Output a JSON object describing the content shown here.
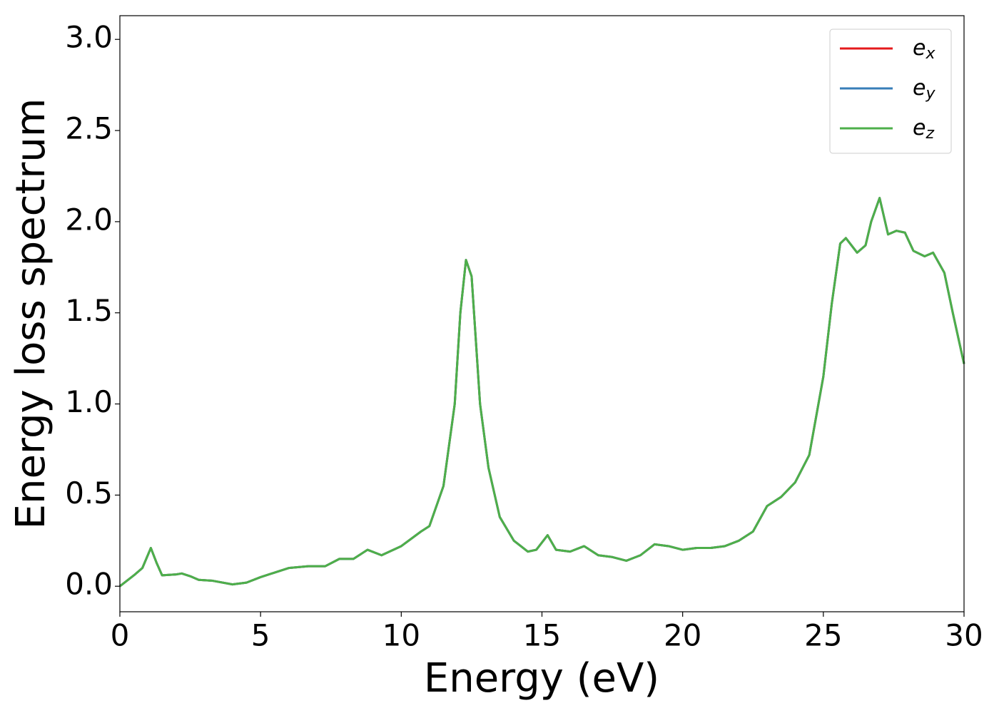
{
  "chart_data": {
    "type": "line",
    "xlabel": "Energy (eV)",
    "ylabel": "Energy loss spectrum",
    "xlim": [
      0,
      30
    ],
    "ylim": [
      -0.14,
      3.13
    ],
    "xticks": [
      0,
      5,
      10,
      15,
      20,
      25,
      30
    ],
    "yticks": [
      {
        "value": 0,
        "label": "0.0"
      },
      {
        "value": 0.5,
        "label": "0.5"
      },
      {
        "value": 1,
        "label": "1.0"
      },
      {
        "value": 1.5,
        "label": "1.5"
      },
      {
        "value": 2,
        "label": "2.0"
      },
      {
        "value": 2.5,
        "label": "2.5"
      },
      {
        "value": 3,
        "label": "3.0"
      }
    ],
    "legend": "upper right",
    "x": [
      0,
      0.5,
      0.8,
      1.1,
      1.3,
      1.5,
      2.0,
      2.2,
      2.5,
      2.8,
      3.3,
      4.0,
      4.5,
      5.0,
      5.5,
      6.0,
      6.7,
      7.3,
      7.8,
      8.3,
      8.8,
      9.3,
      10.0,
      10.7,
      11.0,
      11.5,
      11.9,
      12.1,
      12.3,
      12.5,
      12.8,
      13.1,
      13.5,
      14.0,
      14.5,
      14.8,
      15.2,
      15.5,
      16.0,
      16.5,
      17.0,
      17.5,
      18.0,
      18.5,
      19.0,
      19.5,
      20.0,
      20.5,
      21.0,
      21.5,
      22.0,
      22.5,
      23.0,
      23.5,
      24.0,
      24.5,
      25.0,
      25.3,
      25.6,
      25.8,
      26.2,
      26.5,
      26.7,
      27.0,
      27.3,
      27.6,
      27.9,
      28.2,
      28.6,
      28.9,
      29.3,
      29.6,
      30.0
    ],
    "series": [
      {
        "name": "ex",
        "color": "#e41a1c",
        "values": [
          0,
          0.06,
          0.1,
          0.21,
          0.13,
          0.06,
          0.065,
          0.07,
          0.055,
          0.035,
          0.03,
          0.01,
          0.02,
          0.05,
          0.075,
          0.1,
          0.11,
          0.11,
          0.15,
          0.15,
          0.2,
          0.17,
          0.22,
          0.3,
          0.33,
          0.55,
          1.0,
          1.5,
          1.79,
          1.7,
          1.0,
          0.65,
          0.38,
          0.25,
          0.19,
          0.2,
          0.28,
          0.2,
          0.19,
          0.22,
          0.17,
          0.16,
          0.14,
          0.17,
          0.23,
          0.22,
          0.2,
          0.21,
          0.21,
          0.22,
          0.25,
          0.3,
          0.44,
          0.49,
          0.57,
          0.72,
          1.15,
          1.55,
          1.88,
          1.91,
          1.83,
          1.87,
          2.0,
          2.13,
          1.93,
          1.95,
          1.94,
          1.84,
          1.81,
          1.83,
          1.72,
          1.5,
          1.22
        ]
      },
      {
        "name": "ey",
        "color": "#377eb8",
        "values": [
          0,
          0.06,
          0.1,
          0.21,
          0.13,
          0.06,
          0.065,
          0.07,
          0.055,
          0.035,
          0.03,
          0.01,
          0.02,
          0.05,
          0.075,
          0.1,
          0.11,
          0.11,
          0.15,
          0.15,
          0.2,
          0.17,
          0.22,
          0.3,
          0.33,
          0.55,
          1.0,
          1.5,
          1.79,
          1.7,
          1.0,
          0.65,
          0.38,
          0.25,
          0.19,
          0.2,
          0.28,
          0.2,
          0.19,
          0.22,
          0.17,
          0.16,
          0.14,
          0.17,
          0.23,
          0.22,
          0.2,
          0.21,
          0.21,
          0.22,
          0.25,
          0.3,
          0.44,
          0.49,
          0.57,
          0.72,
          1.15,
          1.55,
          1.88,
          1.91,
          1.83,
          1.87,
          2.0,
          2.13,
          1.93,
          1.95,
          1.94,
          1.84,
          1.81,
          1.83,
          1.72,
          1.5,
          1.22
        ]
      },
      {
        "name": "ez",
        "color": "#4daf4a",
        "values": [
          0,
          0.06,
          0.1,
          0.21,
          0.13,
          0.06,
          0.065,
          0.07,
          0.055,
          0.035,
          0.03,
          0.01,
          0.02,
          0.05,
          0.075,
          0.1,
          0.11,
          0.11,
          0.15,
          0.15,
          0.2,
          0.17,
          0.22,
          0.3,
          0.33,
          0.55,
          1.0,
          1.5,
          1.79,
          1.7,
          1.0,
          0.65,
          0.38,
          0.25,
          0.19,
          0.2,
          0.28,
          0.2,
          0.19,
          0.22,
          0.17,
          0.16,
          0.14,
          0.17,
          0.23,
          0.22,
          0.2,
          0.21,
          0.21,
          0.22,
          0.25,
          0.3,
          0.44,
          0.49,
          0.57,
          0.72,
          1.15,
          1.55,
          1.88,
          1.91,
          1.83,
          1.87,
          2.0,
          2.13,
          1.93,
          1.95,
          1.94,
          1.84,
          1.81,
          1.83,
          1.72,
          1.5,
          1.22
        ]
      }
    ]
  }
}
